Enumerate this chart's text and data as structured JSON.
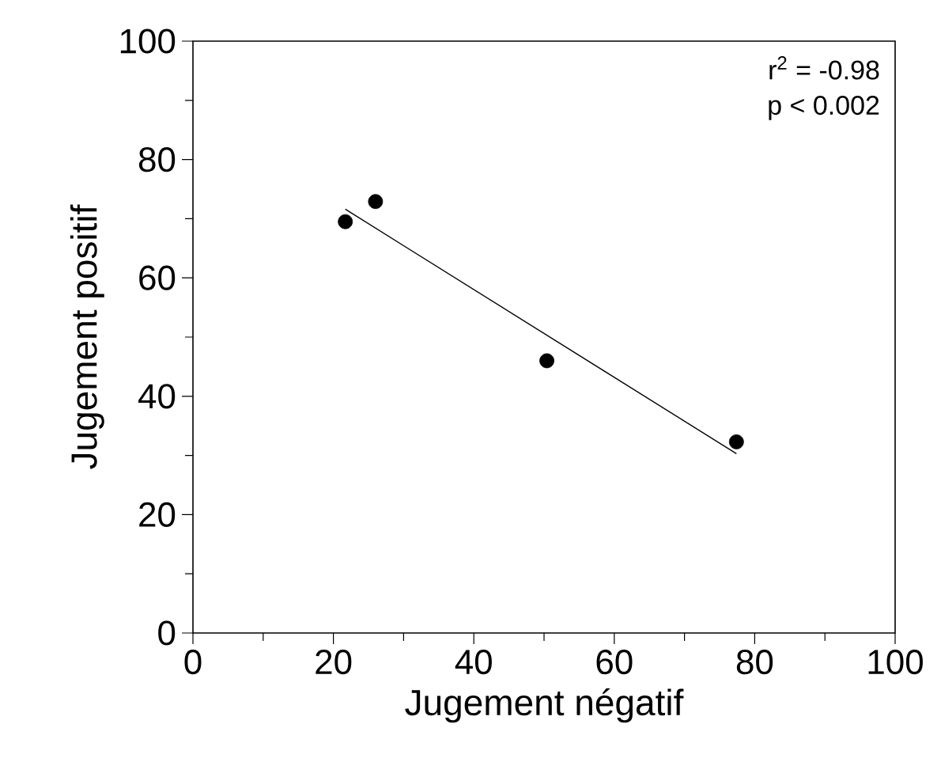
{
  "chart_data": {
    "type": "scatter",
    "xlabel": "Jugement négatif",
    "ylabel": "Jugement positif",
    "xlim": [
      0,
      100
    ],
    "ylim": [
      0,
      100
    ],
    "xticks": [
      0,
      20,
      40,
      60,
      80,
      100
    ],
    "yticks": [
      0,
      20,
      40,
      60,
      80,
      100
    ],
    "grid": false,
    "annotations": [
      "r$^{2}$ = -0.98",
      "p < 0.002"
    ],
    "series": [
      {
        "color": "#000000",
        "marker": "circle",
        "x": [
          21.7,
          26.0,
          50.4,
          77.4
        ],
        "values": [
          69.5,
          72.9,
          46.0,
          32.3
        ]
      },
      {
        "type": "line",
        "color": "#000000",
        "marker": "none",
        "x": [
          21.7,
          77.4
        ],
        "values": [
          71.6,
          30.3
        ]
      }
    ]
  }
}
